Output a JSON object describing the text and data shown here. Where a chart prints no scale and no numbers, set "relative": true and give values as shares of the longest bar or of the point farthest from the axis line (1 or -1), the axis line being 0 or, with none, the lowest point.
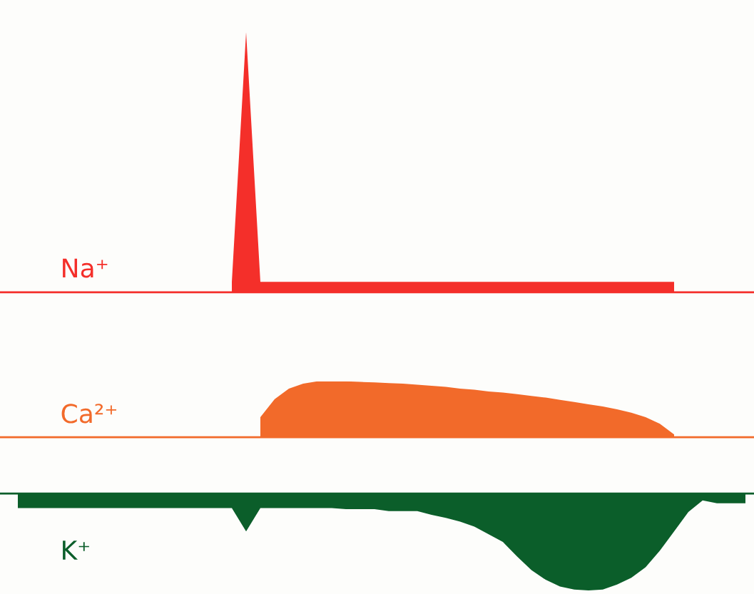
{
  "chart_data": [
    {
      "type": "area",
      "relative": true,
      "categories": [
        null,
        null,
        null,
        null,
        null,
        null,
        null,
        null,
        null,
        null,
        null,
        null,
        null,
        null,
        null,
        null,
        null,
        null,
        null,
        null,
        null,
        null,
        null,
        null,
        null,
        null,
        null,
        null,
        null,
        null,
        null,
        null,
        null,
        null,
        null,
        null,
        null,
        null,
        null,
        null,
        null,
        null,
        null,
        null,
        null,
        null,
        null,
        null,
        null,
        null,
        null,
        null
      ],
      "series": [
        {
          "name": "Na⁺",
          "color": "#f42f2a",
          "values": [
            null,
            null,
            null,
            null,
            null,
            null,
            null,
            null,
            null,
            null,
            null,
            null,
            null,
            null,
            null,
            0.04,
            1,
            0.04,
            0.04,
            0.04,
            0.04,
            0.04,
            0.04,
            0.04,
            0.04,
            0.04,
            0.04,
            0.04,
            0.04,
            0.04,
            0.04,
            0.04,
            0.04,
            0.04,
            0.04,
            0.04,
            0.04,
            0.04,
            0.04,
            0.04,
            0.04,
            0.04,
            0.04,
            0.04,
            0.04,
            0.04,
            0.04,
            null,
            null,
            null,
            null,
            null
          ]
        }
      ]
    },
    {
      "type": "area",
      "relative": true,
      "categories": [
        null,
        null,
        null,
        null,
        null,
        null,
        null,
        null,
        null,
        null,
        null,
        null,
        null,
        null,
        null,
        null,
        null,
        null,
        null,
        null,
        null,
        null,
        null,
        null,
        null,
        null,
        null,
        null,
        null,
        null,
        null,
        null,
        null,
        null,
        null,
        null,
        null,
        null,
        null,
        null,
        null,
        null,
        null,
        null,
        null,
        null,
        null,
        null,
        null,
        null,
        null,
        null
      ],
      "series": [
        {
          "name": "Ca²⁺",
          "color": "#f26a2a",
          "values": [
            null,
            null,
            null,
            null,
            null,
            null,
            null,
            null,
            null,
            null,
            null,
            null,
            null,
            null,
            null,
            null,
            null,
            0.36,
            0.68,
            0.87,
            0.96,
            1,
            1,
            1,
            0.99,
            0.98,
            0.97,
            0.96,
            0.94,
            0.92,
            0.9,
            0.87,
            0.85,
            0.82,
            0.8,
            0.77,
            0.74,
            0.71,
            0.67,
            0.63,
            0.59,
            0.55,
            0.5,
            0.44,
            0.36,
            0.24,
            0.05,
            null,
            null,
            null,
            null,
            null
          ]
        }
      ]
    },
    {
      "type": "area",
      "relative": true,
      "categories": [
        null,
        null,
        null,
        null,
        null,
        null,
        null,
        null,
        null,
        null,
        null,
        null,
        null,
        null,
        null,
        null,
        null,
        null,
        null,
        null,
        null,
        null,
        null,
        null,
        null,
        null,
        null,
        null,
        null,
        null,
        null,
        null,
        null,
        null,
        null,
        null,
        null,
        null,
        null,
        null,
        null,
        null,
        null,
        null,
        null,
        null,
        null,
        null,
        null,
        null,
        null,
        null
      ],
      "series": [
        {
          "name": "K⁺",
          "color": "#0b5e2a",
          "values": [
            -0.15,
            -0.15,
            -0.15,
            -0.15,
            -0.15,
            -0.15,
            -0.15,
            -0.15,
            -0.15,
            -0.15,
            -0.15,
            -0.15,
            -0.15,
            -0.15,
            -0.15,
            -0.15,
            -0.39,
            -0.15,
            -0.15,
            -0.15,
            -0.15,
            -0.15,
            -0.15,
            -0.16,
            -0.16,
            -0.16,
            -0.18,
            -0.18,
            -0.18,
            -0.22,
            -0.25,
            -0.29,
            -0.34,
            -0.42,
            -0.5,
            -0.65,
            -0.79,
            -0.89,
            -0.96,
            -0.99,
            -1,
            -0.99,
            -0.94,
            -0.87,
            -0.76,
            -0.59,
            -0.39,
            -0.19,
            -0.07,
            -0.1,
            -0.1,
            -0.1
          ]
        }
      ]
    }
  ]
}
